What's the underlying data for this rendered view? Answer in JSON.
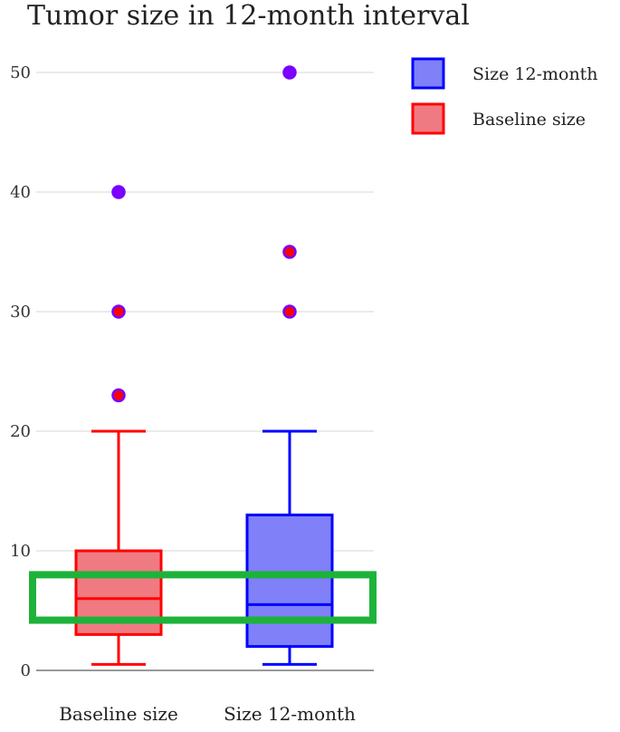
{
  "chart_data": {
    "type": "box",
    "title": "Tumor size in 12-month interval",
    "xlabel": "",
    "ylabel": "",
    "ylim": [
      0,
      50
    ],
    "yticks": [
      0,
      10,
      20,
      30,
      40,
      50
    ],
    "categories": [
      "Baseline size",
      "Size 12-month"
    ],
    "series": [
      {
        "name": "Baseline size",
        "category": "Baseline size",
        "color": "#ff0000",
        "fill": "#f07a82",
        "whisker_low": 0.5,
        "q1": 3,
        "median": 6,
        "q3": 10,
        "whisker_high": 20,
        "outliers": [
          23,
          30,
          40
        ]
      },
      {
        "name": "Size 12-month",
        "category": "Size 12-month",
        "color": "#0000ff",
        "fill": "#8080f8",
        "whisker_low": 0.5,
        "q1": 2,
        "median": 5.5,
        "q3": 13,
        "whisker_high": 20,
        "outliers": [
          30,
          35,
          50
        ]
      }
    ],
    "outlier_stroke": "#7a00ff",
    "highlight": {
      "ymin": 4.2,
      "ymax": 8,
      "color": "#1db33a"
    },
    "legend": {
      "position": "top-right",
      "entries": [
        {
          "label": "Size 12-month",
          "color": "#0000ff",
          "fill": "#8080f8"
        },
        {
          "label": "Baseline size",
          "color": "#ff0000",
          "fill": "#f07a82"
        }
      ]
    },
    "grid": true
  }
}
